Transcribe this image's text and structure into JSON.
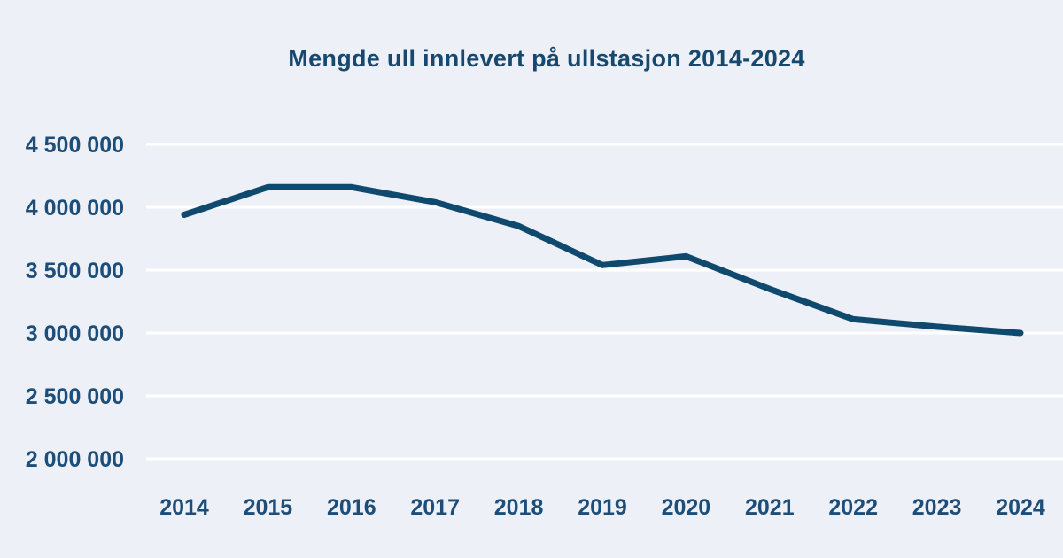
{
  "title": "Mengde ull innlevert på ullstasjon 2014-2024",
  "colors": {
    "background": "#edf0f7",
    "line": "#0f4a6e",
    "tick_text": "#1d4e79",
    "title_text": "#17496f",
    "gridline": "#ffffff"
  },
  "chart_data": {
    "type": "line",
    "title": "Mengde ull innlevert på ullstasjon 2014-2024",
    "categories": [
      "2014",
      "2015",
      "2016",
      "2017",
      "2018",
      "2019",
      "2020",
      "2021",
      "2022",
      "2023",
      "2024"
    ],
    "series": [
      {
        "name": "Mengde ull innlevert",
        "values": [
          3940000,
          4160000,
          4160000,
          4040000,
          3850000,
          3540000,
          3610000,
          3350000,
          3110000,
          3050000,
          3000000
        ]
      }
    ],
    "xlabel": "",
    "ylabel": "",
    "ylim": [
      2000000,
      4500000
    ],
    "y_ticks": [
      {
        "value": 4500000,
        "label": "4 500 000"
      },
      {
        "value": 4000000,
        "label": "4 000 000"
      },
      {
        "value": 3500000,
        "label": "3 500 000"
      },
      {
        "value": 3000000,
        "label": "3 000 000"
      },
      {
        "value": 2500000,
        "label": "2 500 000"
      },
      {
        "value": 2000000,
        "label": "2 000 000"
      }
    ],
    "grid": "horizontal",
    "legend_position": "none"
  }
}
